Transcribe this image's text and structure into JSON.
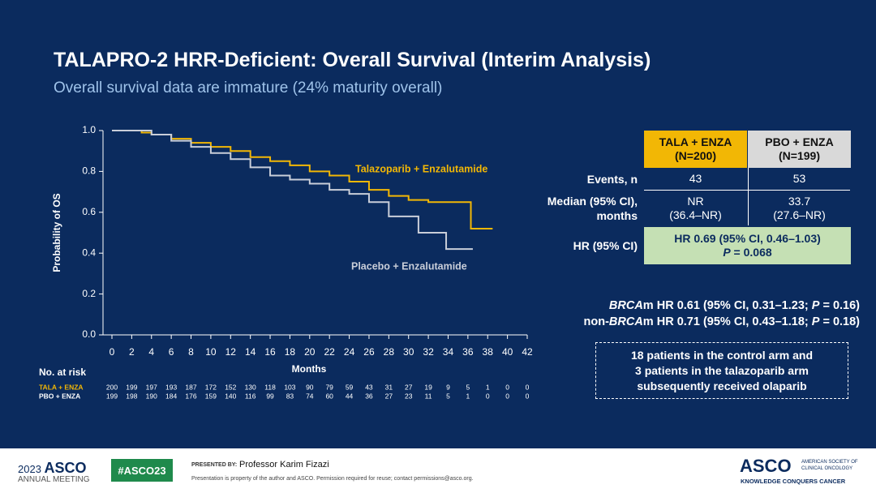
{
  "header": {
    "title": "TALAPRO-2 HRR-Deficient: Overall Survival (Interim Analysis)",
    "subtitle": "Overall survival data are immature (24% maturity overall)"
  },
  "chart_data": {
    "type": "line",
    "step": true,
    "x_label": "Months",
    "y_label": "Probability of OS",
    "xlim": [
      0,
      42
    ],
    "xticks": [
      0,
      2,
      4,
      6,
      8,
      10,
      12,
      14,
      16,
      18,
      20,
      22,
      24,
      26,
      28,
      30,
      32,
      34,
      36,
      38,
      40,
      42
    ],
    "ylim": [
      0,
      1
    ],
    "yticks": [
      {
        "value": 0,
        "label": "0.0"
      },
      {
        "value": 0.2,
        "label": "0.2"
      },
      {
        "value": 0.4,
        "label": "0.4"
      },
      {
        "value": 0.6,
        "label": "0.6"
      },
      {
        "value": 0.8,
        "label": "0.8"
      },
      {
        "value": 1,
        "label": "1.0"
      }
    ],
    "series": [
      {
        "name": "Talazoparib + Enzalutamide",
        "color": "#f2b705",
        "x": [
          0,
          2,
          3,
          4,
          6,
          8,
          10,
          12,
          14,
          16,
          18,
          20,
          22,
          24,
          26,
          28,
          30,
          32,
          34,
          36,
          36.3,
          38.5
        ],
        "values": [
          1,
          1,
          0.99,
          0.98,
          0.96,
          0.94,
          0.92,
          0.9,
          0.87,
          0.85,
          0.83,
          0.8,
          0.78,
          0.75,
          0.71,
          0.68,
          0.66,
          0.65,
          0.65,
          0.65,
          0.52,
          0.52
        ]
      },
      {
        "name": "Placebo + Enzalutamide",
        "color": "#c9ced9",
        "x": [
          0,
          2,
          4,
          6,
          8,
          10,
          12,
          14,
          16,
          18,
          20,
          22,
          24,
          26,
          28,
          30,
          31,
          33,
          33.8,
          36.5
        ],
        "values": [
          1,
          1,
          0.98,
          0.95,
          0.92,
          0.89,
          0.86,
          0.82,
          0.78,
          0.76,
          0.74,
          0.71,
          0.69,
          0.65,
          0.58,
          0.58,
          0.5,
          0.5,
          0.42,
          0.42
        ]
      }
    ],
    "risk_table": {
      "title": "No. at risk",
      "rows": [
        {
          "label": "TALA + ENZA",
          "color": "#f2b705",
          "values": [
            "200",
            "199",
            "197",
            "193",
            "187",
            "172",
            "152",
            "130",
            "118",
            "103",
            "90",
            "79",
            "59",
            "43",
            "31",
            "27",
            "19",
            "9",
            "5",
            "1",
            "0",
            "0"
          ]
        },
        {
          "label": "PBO + ENZA",
          "color": "#ffffff",
          "values": [
            "199",
            "198",
            "190",
            "184",
            "176",
            "159",
            "140",
            "116",
            "99",
            "83",
            "74",
            "60",
            "44",
            "36",
            "27",
            "23",
            "11",
            "5",
            "1",
            "0",
            "0",
            "0"
          ]
        }
      ]
    }
  },
  "summary_table": {
    "columns": [
      [
        "TALA + ENZA",
        "(N=200)"
      ],
      [
        "PBO + ENZA",
        "(N=199)"
      ]
    ],
    "rows": [
      {
        "label": [
          "Events, n"
        ],
        "cells": [
          [
            "43"
          ],
          [
            "53"
          ]
        ]
      },
      {
        "label": [
          "Median (95% CI),",
          "months"
        ],
        "cells": [
          [
            "NR",
            "(36.4–NR)"
          ],
          [
            "33.7",
            "(27.6–NR)"
          ]
        ]
      },
      {
        "label": [
          "HR (95% CI)"
        ],
        "merged": [
          [
            {
              "text": "HR 0.69 (95% CI, 0.46–1.03)",
              "italic": false
            }
          ],
          [
            {
              "text": "P",
              "italic": true
            },
            {
              "text": " = 0.068",
              "italic": false
            }
          ]
        ]
      }
    ]
  },
  "notes": [
    [
      {
        "text": "BRCA",
        "italic": true
      },
      {
        "text": "m HR 0.61 (95% CI, 0.31–1.23; ",
        "italic": false
      },
      {
        "text": "P",
        "italic": true
      },
      {
        "text": " = 0.16)",
        "italic": false
      }
    ],
    [
      {
        "text": "non-",
        "italic": false
      },
      {
        "text": "BRCA",
        "italic": true
      },
      {
        "text": "m HR 0.71 (95% CI, 0.43–1.18; ",
        "italic": false
      },
      {
        "text": "P",
        "italic": true
      },
      {
        "text": " = 0.18)",
        "italic": false
      }
    ]
  ],
  "callout": [
    "18 patients in the control arm and",
    "3 patients in the talazoparib arm",
    "subsequently received olaparib"
  ],
  "footer": {
    "meeting_year": "2023",
    "meeting_org": "ASCO",
    "meeting_name": "ANNUAL MEETING",
    "hashtag": "#ASCO23",
    "presented_by": "PRESENTED BY:",
    "presenter": "Professor Karim Fizazi",
    "disclaimer": "Presentation is property of the author and ASCO. Permission required for reuse; contact permissions@asco.org.",
    "logo": "ASCO",
    "logo_line1": "AMERICAN SOCIETY OF",
    "logo_line2": "CLINICAL ONCOLOGY",
    "tagline": "KNOWLEDGE CONQUERS CANCER"
  }
}
